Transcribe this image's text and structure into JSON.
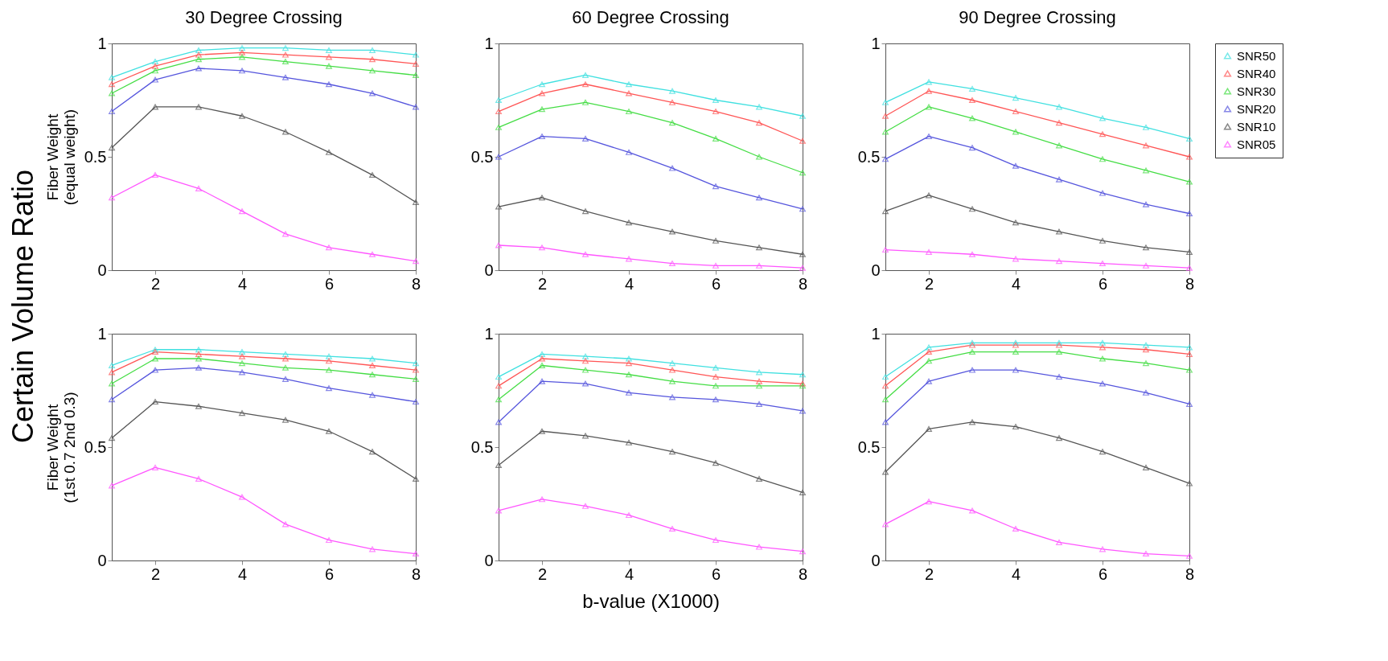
{
  "chart_data": [
    {
      "type": "line",
      "title": "30 Degree Crossing",
      "ylabel": "Fiber Weight\n(equal weight)",
      "annotations": [
        "Certain Volume Ratio"
      ],
      "x": [
        1,
        2,
        3,
        4,
        5,
        6,
        7,
        8
      ],
      "xlim": [
        1,
        8
      ],
      "xticks": [
        2,
        4,
        6,
        8
      ],
      "ylim": [
        0,
        1
      ],
      "yticks": [
        0,
        0.5,
        1
      ],
      "marker": "triangle",
      "grid": false,
      "legend": "right",
      "series": [
        {
          "name": "SNR50",
          "color": "#40e0e0",
          "values": [
            0.85,
            0.92,
            0.97,
            0.98,
            0.98,
            0.97,
            0.97,
            0.95
          ]
        },
        {
          "name": "SNR40",
          "color": "#ff5555",
          "values": [
            0.82,
            0.9,
            0.95,
            0.96,
            0.95,
            0.94,
            0.93,
            0.91
          ]
        },
        {
          "name": "SNR30",
          "color": "#44dd44",
          "values": [
            0.78,
            0.88,
            0.93,
            0.94,
            0.92,
            0.9,
            0.88,
            0.86
          ]
        },
        {
          "name": "SNR20",
          "color": "#5555dd",
          "values": [
            0.7,
            0.84,
            0.89,
            0.88,
            0.85,
            0.82,
            0.78,
            0.72
          ]
        },
        {
          "name": "SNR10",
          "color": "#555555",
          "values": [
            0.54,
            0.72,
            0.72,
            0.68,
            0.61,
            0.52,
            0.42,
            0.3
          ]
        },
        {
          "name": "SNR05",
          "color": "#ff55ff",
          "values": [
            0.32,
            0.42,
            0.36,
            0.26,
            0.16,
            0.1,
            0.07,
            0.04
          ]
        }
      ]
    },
    {
      "type": "line",
      "title": "60 Degree Crossing",
      "x": [
        1,
        2,
        3,
        4,
        5,
        6,
        7,
        8
      ],
      "xlim": [
        1,
        8
      ],
      "xticks": [
        2,
        4,
        6,
        8
      ],
      "ylim": [
        0,
        1
      ],
      "yticks": [
        0,
        0.5,
        1
      ],
      "marker": "triangle",
      "grid": false,
      "legend": false,
      "series": [
        {
          "name": "SNR50",
          "color": "#40e0e0",
          "values": [
            0.75,
            0.82,
            0.86,
            0.82,
            0.79,
            0.75,
            0.72,
            0.68
          ]
        },
        {
          "name": "SNR40",
          "color": "#ff5555",
          "values": [
            0.7,
            0.78,
            0.82,
            0.78,
            0.74,
            0.7,
            0.65,
            0.57
          ]
        },
        {
          "name": "SNR30",
          "color": "#44dd44",
          "values": [
            0.63,
            0.71,
            0.74,
            0.7,
            0.65,
            0.58,
            0.5,
            0.43
          ]
        },
        {
          "name": "SNR20",
          "color": "#5555dd",
          "values": [
            0.5,
            0.59,
            0.58,
            0.52,
            0.45,
            0.37,
            0.32,
            0.27
          ]
        },
        {
          "name": "SNR10",
          "color": "#555555",
          "values": [
            0.28,
            0.32,
            0.26,
            0.21,
            0.17,
            0.13,
            0.1,
            0.07
          ]
        },
        {
          "name": "SNR05",
          "color": "#ff55ff",
          "values": [
            0.11,
            0.1,
            0.07,
            0.05,
            0.03,
            0.02,
            0.02,
            0.01
          ]
        }
      ]
    },
    {
      "type": "line",
      "title": "90 Degree Crossing",
      "x": [
        1,
        2,
        3,
        4,
        5,
        6,
        7,
        8
      ],
      "xlim": [
        1,
        8
      ],
      "xticks": [
        2,
        4,
        6,
        8
      ],
      "ylim": [
        0,
        1
      ],
      "yticks": [
        0,
        0.5,
        1
      ],
      "marker": "triangle",
      "grid": false,
      "legend": false,
      "series": [
        {
          "name": "SNR50",
          "color": "#40e0e0",
          "values": [
            0.74,
            0.83,
            0.8,
            0.76,
            0.72,
            0.67,
            0.63,
            0.58
          ]
        },
        {
          "name": "SNR40",
          "color": "#ff5555",
          "values": [
            0.68,
            0.79,
            0.75,
            0.7,
            0.65,
            0.6,
            0.55,
            0.5
          ]
        },
        {
          "name": "SNR30",
          "color": "#44dd44",
          "values": [
            0.61,
            0.72,
            0.67,
            0.61,
            0.55,
            0.49,
            0.44,
            0.39
          ]
        },
        {
          "name": "SNR20",
          "color": "#5555dd",
          "values": [
            0.49,
            0.59,
            0.54,
            0.46,
            0.4,
            0.34,
            0.29,
            0.25
          ]
        },
        {
          "name": "SNR10",
          "color": "#555555",
          "values": [
            0.26,
            0.33,
            0.27,
            0.21,
            0.17,
            0.13,
            0.1,
            0.08
          ]
        },
        {
          "name": "SNR05",
          "color": "#ff55ff",
          "values": [
            0.09,
            0.08,
            0.07,
            0.05,
            0.04,
            0.03,
            0.02,
            0.01
          ]
        }
      ]
    },
    {
      "type": "line",
      "ylabel": "Fiber Weight\n(1st 0.7 2nd 0.3)",
      "x": [
        1,
        2,
        3,
        4,
        5,
        6,
        7,
        8
      ],
      "xlim": [
        1,
        8
      ],
      "xticks": [
        2,
        4,
        6,
        8
      ],
      "ylim": [
        0,
        1
      ],
      "yticks": [
        0,
        0.5,
        1
      ],
      "marker": "triangle",
      "grid": false,
      "legend": false,
      "series": [
        {
          "name": "SNR50",
          "color": "#40e0e0",
          "values": [
            0.86,
            0.93,
            0.93,
            0.92,
            0.91,
            0.9,
            0.89,
            0.87
          ]
        },
        {
          "name": "SNR40",
          "color": "#ff5555",
          "values": [
            0.83,
            0.92,
            0.91,
            0.9,
            0.89,
            0.88,
            0.86,
            0.84
          ]
        },
        {
          "name": "SNR30",
          "color": "#44dd44",
          "values": [
            0.78,
            0.89,
            0.89,
            0.87,
            0.85,
            0.84,
            0.82,
            0.8
          ]
        },
        {
          "name": "SNR20",
          "color": "#5555dd",
          "values": [
            0.71,
            0.84,
            0.85,
            0.83,
            0.8,
            0.76,
            0.73,
            0.7
          ]
        },
        {
          "name": "SNR10",
          "color": "#555555",
          "values": [
            0.54,
            0.7,
            0.68,
            0.65,
            0.62,
            0.57,
            0.48,
            0.36
          ]
        },
        {
          "name": "SNR05",
          "color": "#ff55ff",
          "values": [
            0.33,
            0.41,
            0.36,
            0.28,
            0.16,
            0.09,
            0.05,
            0.03
          ]
        }
      ]
    },
    {
      "type": "line",
      "xlabel": "b-value (X1000)",
      "x": [
        1,
        2,
        3,
        4,
        5,
        6,
        7,
        8
      ],
      "xlim": [
        1,
        8
      ],
      "xticks": [
        2,
        4,
        6,
        8
      ],
      "ylim": [
        0,
        1
      ],
      "yticks": [
        0,
        0.5,
        1
      ],
      "marker": "triangle",
      "grid": false,
      "legend": false,
      "series": [
        {
          "name": "SNR50",
          "color": "#40e0e0",
          "values": [
            0.81,
            0.91,
            0.9,
            0.89,
            0.87,
            0.85,
            0.83,
            0.82
          ]
        },
        {
          "name": "SNR40",
          "color": "#ff5555",
          "values": [
            0.77,
            0.89,
            0.88,
            0.87,
            0.84,
            0.81,
            0.79,
            0.78
          ]
        },
        {
          "name": "SNR30",
          "color": "#44dd44",
          "values": [
            0.71,
            0.86,
            0.84,
            0.82,
            0.79,
            0.77,
            0.77,
            0.77
          ]
        },
        {
          "name": "SNR20",
          "color": "#5555dd",
          "values": [
            0.61,
            0.79,
            0.78,
            0.74,
            0.72,
            0.71,
            0.69,
            0.66
          ]
        },
        {
          "name": "SNR10",
          "color": "#555555",
          "values": [
            0.42,
            0.57,
            0.55,
            0.52,
            0.48,
            0.43,
            0.36,
            0.3
          ]
        },
        {
          "name": "SNR05",
          "color": "#ff55ff",
          "values": [
            0.22,
            0.27,
            0.24,
            0.2,
            0.14,
            0.09,
            0.06,
            0.04
          ]
        }
      ]
    },
    {
      "type": "line",
      "x": [
        1,
        2,
        3,
        4,
        5,
        6,
        7,
        8
      ],
      "xlim": [
        1,
        8
      ],
      "xticks": [
        2,
        4,
        6,
        8
      ],
      "ylim": [
        0,
        1
      ],
      "yticks": [
        0,
        0.5,
        1
      ],
      "marker": "triangle",
      "grid": false,
      "legend": false,
      "series": [
        {
          "name": "SNR50",
          "color": "#40e0e0",
          "values": [
            0.81,
            0.94,
            0.96,
            0.96,
            0.96,
            0.96,
            0.95,
            0.94
          ]
        },
        {
          "name": "SNR40",
          "color": "#ff5555",
          "values": [
            0.77,
            0.92,
            0.95,
            0.95,
            0.95,
            0.94,
            0.93,
            0.91
          ]
        },
        {
          "name": "SNR30",
          "color": "#44dd44",
          "values": [
            0.71,
            0.88,
            0.92,
            0.92,
            0.92,
            0.89,
            0.87,
            0.84
          ]
        },
        {
          "name": "SNR20",
          "color": "#5555dd",
          "values": [
            0.61,
            0.79,
            0.84,
            0.84,
            0.81,
            0.78,
            0.74,
            0.69
          ]
        },
        {
          "name": "SNR10",
          "color": "#555555",
          "values": [
            0.39,
            0.58,
            0.61,
            0.59,
            0.54,
            0.48,
            0.41,
            0.34
          ]
        },
        {
          "name": "SNR05",
          "color": "#ff55ff",
          "values": [
            0.16,
            0.26,
            0.22,
            0.14,
            0.08,
            0.05,
            0.03,
            0.02
          ]
        }
      ]
    }
  ]
}
